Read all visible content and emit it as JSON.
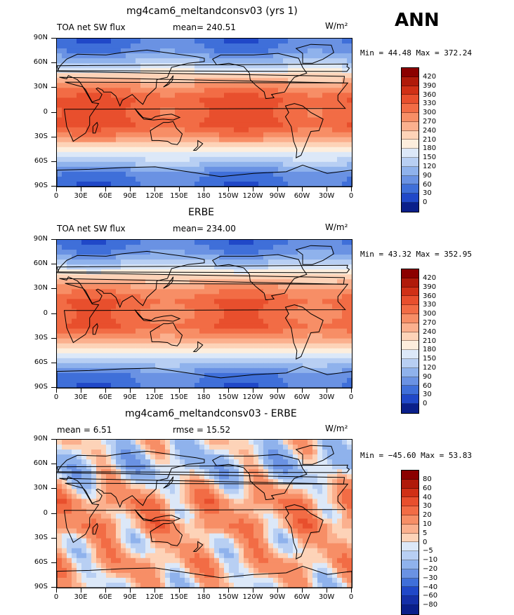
{
  "season": "ANN",
  "panels": [
    {
      "title": "mg4cam6_meltandconsv03 (yrs 1)",
      "left_label": "TOA  net  SW  flux",
      "mid_label": "mean=  240.51",
      "units": "W/m²",
      "minmax": "Min =   44.48  Max =  372.24"
    },
    {
      "title": "ERBE",
      "left_label": "TOA  net  SW  flux",
      "mid_label": "mean=  234.00",
      "units": "W/m²",
      "minmax": "Min =   43.32  Max =  352.95"
    },
    {
      "title": "mg4cam6_meltandconsv03 - ERBE",
      "left_label": "mean =     6.51",
      "mid_label": "rmse =    15.52",
      "units": "W/m²",
      "minmax": "Min = −45.60  Max =   53.83"
    }
  ],
  "lat_ticks": [
    "90N",
    "60N",
    "30N",
    "0",
    "30S",
    "60S",
    "90S"
  ],
  "lon_ticks": [
    "0",
    "30E",
    "60E",
    "90E",
    "120E",
    "150E",
    "180",
    "150W",
    "120W",
    "90W",
    "60W",
    "30W",
    "0"
  ],
  "colorbar_abs": {
    "labels": [
      "420",
      "390",
      "360",
      "330",
      "300",
      "270",
      "240",
      "210",
      "180",
      "150",
      "120",
      "90",
      "60",
      "30",
      "0"
    ],
    "colors": [
      "#8b0000",
      "#b01a0a",
      "#d03016",
      "#e84f2d",
      "#f26c45",
      "#f78e66",
      "#fbb08e",
      "#fdd3b8",
      "#fdeedd",
      "#dce8f8",
      "#b8cff3",
      "#8fb2ec",
      "#6a92e3",
      "#3f6fd9",
      "#2048c8",
      "#0a1f8a"
    ]
  },
  "colorbar_diff": {
    "labels": [
      "80",
      "60",
      "40",
      "30",
      "20",
      "10",
      "5",
      "0",
      "−5",
      "−10",
      "−20",
      "−30",
      "−40",
      "−60",
      "−80"
    ],
    "colors": [
      "#8b0000",
      "#b01a0a",
      "#d03016",
      "#e84f2d",
      "#f26c45",
      "#f78e66",
      "#fbb08e",
      "#fdd3b8",
      "#dce8f8",
      "#b8cff3",
      "#8fb2ec",
      "#6a92e3",
      "#3f6fd9",
      "#2048c8",
      "#1530a8",
      "#0a1f8a"
    ]
  },
  "chart_data": [
    {
      "type": "heatmap",
      "title": "mg4cam6_meltandconsv03 (yrs 1)",
      "variable": "TOA net SW flux",
      "units": "W/m^2",
      "mean": 240.51,
      "min": 44.48,
      "max": 372.24,
      "x_range": [
        0,
        360
      ],
      "y_range": [
        -90,
        90
      ],
      "zonal_mean_profile": {
        "lat": [
          90,
          75,
          60,
          45,
          30,
          15,
          0,
          -15,
          -30,
          -45,
          -60,
          -75,
          -90
        ],
        "value": [
          45,
          70,
          130,
          210,
          290,
          335,
          320,
          335,
          280,
          200,
          130,
          65,
          45
        ]
      }
    },
    {
      "type": "heatmap",
      "title": "ERBE",
      "variable": "TOA net SW flux",
      "units": "W/m^2",
      "mean": 234.0,
      "min": 43.32,
      "max": 352.95,
      "x_range": [
        0,
        360
      ],
      "y_range": [
        -90,
        90
      ],
      "zonal_mean_profile": {
        "lat": [
          90,
          75,
          60,
          45,
          30,
          15,
          0,
          -15,
          -30,
          -45,
          -60,
          -75,
          -90
        ],
        "value": [
          45,
          75,
          140,
          215,
          285,
          320,
          310,
          320,
          275,
          195,
          120,
          60,
          45
        ]
      }
    },
    {
      "type": "heatmap",
      "title": "mg4cam6_meltandconsv03 - ERBE",
      "variable": "TOA net SW flux difference",
      "units": "W/m^2",
      "mean": 6.51,
      "rmse": 15.52,
      "min": -45.6,
      "max": 53.83,
      "x_range": [
        0,
        360
      ],
      "y_range": [
        -90,
        90
      ],
      "zonal_mean_profile": {
        "lat": [
          90,
          75,
          60,
          45,
          30,
          15,
          0,
          -15,
          -30,
          -45,
          -60,
          -75,
          -90
        ],
        "value": [
          0,
          -5,
          -10,
          -5,
          5,
          15,
          10,
          15,
          5,
          5,
          10,
          5,
          0
        ]
      }
    }
  ]
}
